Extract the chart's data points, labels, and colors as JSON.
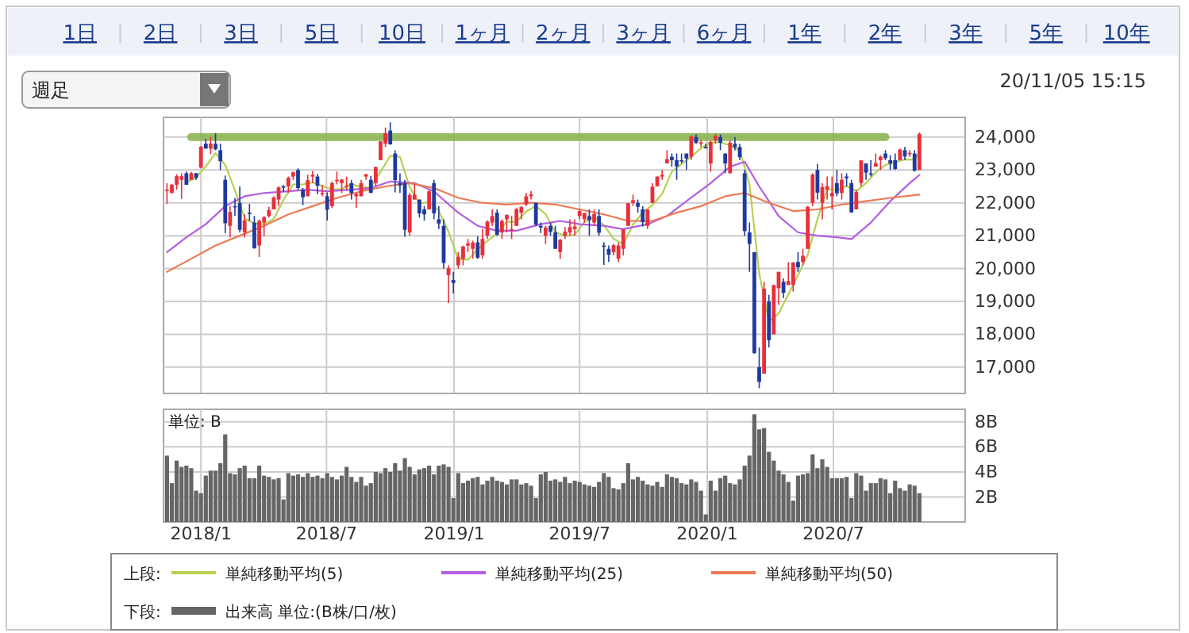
{
  "chart_data": [
    {
      "type": "candlestick",
      "annotations": [
        "1日",
        "2日",
        "3日",
        "5日",
        "10日",
        "1ヶ月",
        "2ヶ月",
        "3ヶ月",
        "6ヶ月",
        "1年",
        "2年",
        "3年",
        "5年",
        "10年",
        "週足",
        "20/11/05 15:15"
      ],
      "legend": "bottom",
      "legend_title": "上段:",
      "grid": true,
      "tick_labels": "y",
      "xlim": [
        "2017-11-08",
        "2021-01-07"
      ],
      "xticks": [
        {
          "value": "2018-01-01",
          "label": null
        },
        {
          "value": "2018-07-01",
          "label": null
        },
        {
          "value": "2019-01-01",
          "label": null
        },
        {
          "value": "2019-07-01",
          "label": null
        },
        {
          "value": "2020-01-01",
          "label": null
        },
        {
          "value": "2020-07-01",
          "label": null
        }
      ],
      "ylim": [
        16200,
        24600
      ],
      "yticks": [
        {
          "value": 17000,
          "label": "17,000"
        },
        {
          "value": 18000,
          "label": "18,000"
        },
        {
          "value": 19000,
          "label": "19,000"
        },
        {
          "value": 20000,
          "label": "20,000"
        },
        {
          "value": 21000,
          "label": "21,000"
        },
        {
          "value": 22000,
          "label": "22,000"
        },
        {
          "value": 23000,
          "label": "23,000"
        },
        {
          "value": 24000,
          "label": "24,000"
        }
      ],
      "x": [
        "2017-11-13",
        "2017-11-20",
        "2017-11-27",
        "2017-12-04",
        "2017-12-11",
        "2017-12-18",
        "2017-12-25",
        "2018-01-01",
        "2018-01-08",
        "2018-01-15",
        "2018-01-22",
        "2018-01-29",
        "2018-02-05",
        "2018-02-12",
        "2018-02-19",
        "2018-02-26",
        "2018-03-05",
        "2018-03-12",
        "2018-03-19",
        "2018-03-26",
        "2018-04-02",
        "2018-04-09",
        "2018-04-16",
        "2018-04-23",
        "2018-04-30",
        "2018-05-07",
        "2018-05-14",
        "2018-05-21",
        "2018-05-28",
        "2018-06-04",
        "2018-06-11",
        "2018-06-18",
        "2018-06-25",
        "2018-07-02",
        "2018-07-09",
        "2018-07-16",
        "2018-07-23",
        "2018-07-30",
        "2018-08-06",
        "2018-08-13",
        "2018-08-20",
        "2018-08-27",
        "2018-09-03",
        "2018-09-10",
        "2018-09-17",
        "2018-09-24",
        "2018-10-01",
        "2018-10-08",
        "2018-10-15",
        "2018-10-22",
        "2018-10-29",
        "2018-11-05",
        "2018-11-12",
        "2018-11-19",
        "2018-11-26",
        "2018-12-03",
        "2018-12-10",
        "2018-12-17",
        "2018-12-24",
        "2018-12-31",
        "2019-01-07",
        "2019-01-14",
        "2019-01-21",
        "2019-01-28",
        "2019-02-04",
        "2019-02-11",
        "2019-02-18",
        "2019-02-25",
        "2019-03-04",
        "2019-03-11",
        "2019-03-18",
        "2019-03-25",
        "2019-04-01",
        "2019-04-08",
        "2019-04-15",
        "2019-04-22",
        "2019-04-29",
        "2019-05-06",
        "2019-05-13",
        "2019-05-20",
        "2019-05-27",
        "2019-06-03",
        "2019-06-10",
        "2019-06-17",
        "2019-06-24",
        "2019-07-01",
        "2019-07-08",
        "2019-07-15",
        "2019-07-22",
        "2019-07-29",
        "2019-08-05",
        "2019-08-12",
        "2019-08-19",
        "2019-08-26",
        "2019-09-02",
        "2019-09-09",
        "2019-09-16",
        "2019-09-23",
        "2019-09-30",
        "2019-10-07",
        "2019-10-14",
        "2019-10-21",
        "2019-10-28",
        "2019-11-04",
        "2019-11-11",
        "2019-11-18",
        "2019-11-25",
        "2019-12-02",
        "2019-12-09",
        "2019-12-16",
        "2019-12-23",
        "2019-12-30",
        "2020-01-06",
        "2020-01-13",
        "2020-01-20",
        "2020-01-27",
        "2020-02-03",
        "2020-02-10",
        "2020-02-17",
        "2020-02-24",
        "2020-03-02",
        "2020-03-09",
        "2020-03-16",
        "2020-03-23",
        "2020-03-30",
        "2020-04-06",
        "2020-04-13",
        "2020-04-20",
        "2020-04-27",
        "2020-05-04",
        "2020-05-11",
        "2020-05-18",
        "2020-05-25",
        "2020-06-01",
        "2020-06-08",
        "2020-06-15",
        "2020-06-22",
        "2020-06-29",
        "2020-07-06",
        "2020-07-13",
        "2020-07-20",
        "2020-07-27",
        "2020-08-03",
        "2020-08-10",
        "2020-08-17",
        "2020-08-24",
        "2020-08-31",
        "2020-09-07",
        "2020-09-14",
        "2020-09-21",
        "2020-09-28",
        "2020-10-05",
        "2020-10-12",
        "2020-10-19",
        "2020-10-26",
        "2020-11-02"
      ],
      "ohlc": [
        [
          22400,
          22600,
          21970,
          22400
        ],
        [
          22300,
          22580,
          22290,
          22550
        ],
        [
          22550,
          22870,
          22400,
          22810
        ],
        [
          22700,
          22900,
          22120,
          22810
        ],
        [
          22900,
          22950,
          22550,
          22550
        ],
        [
          22700,
          22940,
          22700,
          22900
        ],
        [
          22900,
          22910,
          22700,
          22760
        ],
        [
          23070,
          23730,
          23050,
          23710
        ],
        [
          23800,
          23950,
          23650,
          23650
        ],
        [
          23650,
          24000,
          23480,
          23800
        ],
        [
          23800,
          24120,
          23600,
          23630
        ],
        [
          23600,
          23800,
          23000,
          23270
        ],
        [
          22700,
          22830,
          21080,
          21380
        ],
        [
          21300,
          21900,
          20950,
          21720
        ],
        [
          21900,
          22150,
          21600,
          21890
        ],
        [
          22000,
          22500,
          21100,
          21180
        ],
        [
          21100,
          21650,
          20940,
          21470
        ],
        [
          21700,
          21970,
          21450,
          21670
        ],
        [
          21400,
          21600,
          20600,
          20620
        ],
        [
          20700,
          21500,
          20350,
          21450
        ],
        [
          21400,
          21600,
          20990,
          21560
        ],
        [
          21600,
          21880,
          21550,
          21780
        ],
        [
          21800,
          22200,
          21800,
          22160
        ],
        [
          22100,
          22500,
          21900,
          22470
        ],
        [
          22500,
          22550,
          22330,
          22470
        ],
        [
          22500,
          22800,
          22300,
          22760
        ],
        [
          22800,
          22950,
          22700,
          22930
        ],
        [
          23000,
          23050,
          22400,
          22450
        ],
        [
          22400,
          22450,
          21930,
          22170
        ],
        [
          22200,
          22860,
          22200,
          22690
        ],
        [
          22800,
          22970,
          22600,
          22850
        ],
        [
          22800,
          22880,
          22260,
          22520
        ],
        [
          22300,
          22540,
          22200,
          22300
        ],
        [
          22200,
          22320,
          21460,
          21790
        ],
        [
          21900,
          22650,
          21850,
          22600
        ],
        [
          22700,
          22950,
          22560,
          22700
        ],
        [
          22600,
          22720,
          22300,
          22710
        ],
        [
          22500,
          22800,
          22400,
          22530
        ],
        [
          22600,
          22700,
          22100,
          22300
        ],
        [
          22200,
          22300,
          21850,
          22270
        ],
        [
          22200,
          22700,
          22200,
          22600
        ],
        [
          22800,
          22880,
          22700,
          22870
        ],
        [
          22700,
          22820,
          22300,
          22300
        ],
        [
          22600,
          23100,
          22500,
          23090
        ],
        [
          23300,
          23870,
          23300,
          23870
        ],
        [
          23800,
          24290,
          23700,
          24120
        ],
        [
          24200,
          24450,
          23770,
          23780
        ],
        [
          23500,
          23600,
          22320,
          22690
        ],
        [
          22600,
          22900,
          22300,
          22530
        ],
        [
          22600,
          22700,
          20970,
          21180
        ],
        [
          21100,
          22300,
          21000,
          22240
        ],
        [
          22100,
          22580,
          22100,
          22250
        ],
        [
          22100,
          22100,
          21550,
          21680
        ],
        [
          21800,
          21900,
          21460,
          21650
        ],
        [
          21800,
          22400,
          21800,
          22350
        ],
        [
          22600,
          22700,
          21500,
          21680
        ],
        [
          21500,
          21900,
          21200,
          21370
        ],
        [
          21300,
          21500,
          20000,
          20170
        ],
        [
          19800,
          20100,
          18950,
          20010
        ],
        [
          19650,
          19900,
          19240,
          19560
        ],
        [
          20100,
          20500,
          20000,
          20360
        ],
        [
          20300,
          20700,
          20100,
          20670
        ],
        [
          20700,
          20900,
          20500,
          20770
        ],
        [
          20600,
          20850,
          20300,
          20790
        ],
        [
          20800,
          20980,
          20300,
          20330
        ],
        [
          20400,
          21200,
          20300,
          20900
        ],
        [
          21000,
          21460,
          20900,
          21430
        ],
        [
          21400,
          21800,
          21300,
          21600
        ],
        [
          21700,
          21800,
          21000,
          21030
        ],
        [
          21100,
          21500,
          20900,
          21450
        ],
        [
          21500,
          21650,
          21100,
          21630
        ],
        [
          21200,
          21600,
          20900,
          21200
        ],
        [
          21300,
          21850,
          21300,
          21810
        ],
        [
          21700,
          21900,
          21500,
          21870
        ],
        [
          21950,
          22300,
          21900,
          22200
        ],
        [
          22200,
          22360,
          22100,
          22260
        ],
        [
          22000,
          22000,
          21300,
          21340
        ],
        [
          21300,
          21400,
          21080,
          21250
        ],
        [
          21000,
          21300,
          20750,
          21250
        ],
        [
          21300,
          21400,
          21000,
          21120
        ],
        [
          21100,
          21300,
          20600,
          20600
        ],
        [
          20500,
          20900,
          20290,
          20880
        ],
        [
          21000,
          21260,
          20900,
          21120
        ],
        [
          21100,
          21500,
          21000,
          21260
        ],
        [
          21200,
          21500,
          21000,
          21280
        ],
        [
          21600,
          21800,
          21500,
          21750
        ],
        [
          21500,
          21700,
          21400,
          21690
        ],
        [
          21600,
          21800,
          21000,
          21470
        ],
        [
          21400,
          21800,
          21300,
          21660
        ],
        [
          21600,
          21800,
          21000,
          21090
        ],
        [
          20700,
          20800,
          20110,
          20680
        ],
        [
          20600,
          20700,
          20200,
          20420
        ],
        [
          20500,
          20750,
          20400,
          20710
        ],
        [
          20300,
          20800,
          20200,
          20700
        ],
        [
          20600,
          21200,
          20400,
          21200
        ],
        [
          21300,
          22000,
          21300,
          21990
        ],
        [
          22000,
          22250,
          21900,
          22080
        ],
        [
          22000,
          22100,
          21700,
          21880
        ],
        [
          21800,
          21900,
          21280,
          21410
        ],
        [
          21300,
          21800,
          21200,
          21800
        ],
        [
          22000,
          22600,
          22000,
          22490
        ],
        [
          22500,
          22800,
          22500,
          22800
        ],
        [
          22800,
          23000,
          22700,
          22850
        ],
        [
          23200,
          23600,
          23200,
          23330
        ],
        [
          23400,
          23500,
          23100,
          23300
        ],
        [
          23300,
          23500,
          22700,
          23110
        ],
        [
          23300,
          23500,
          23200,
          23290
        ],
        [
          23500,
          23500,
          23000,
          23350
        ],
        [
          23400,
          24050,
          23300,
          24020
        ],
        [
          24000,
          24090,
          23800,
          23820
        ],
        [
          23800,
          23900,
          23700,
          23840
        ],
        [
          23700,
          23800,
          23650,
          23660
        ],
        [
          23200,
          23900,
          22950,
          23850
        ],
        [
          23900,
          24100,
          23800,
          24040
        ],
        [
          24000,
          24080,
          23600,
          23830
        ],
        [
          23500,
          23500,
          22900,
          23200
        ],
        [
          22900,
          23900,
          22900,
          23830
        ],
        [
          23800,
          24000,
          23600,
          23690
        ],
        [
          23700,
          23800,
          23300,
          23390
        ],
        [
          22900,
          23000,
          21000,
          21140
        ],
        [
          21100,
          21400,
          19900,
          20750
        ],
        [
          20500,
          20500,
          17400,
          17430
        ],
        [
          17000,
          17600,
          16360,
          16550
        ],
        [
          16800,
          19600,
          16800,
          19390
        ],
        [
          19000,
          19200,
          17600,
          17820
        ],
        [
          18000,
          19500,
          18000,
          19500
        ],
        [
          19400,
          19900,
          18900,
          19900
        ],
        [
          19600,
          19700,
          19100,
          19260
        ],
        [
          19500,
          20200,
          19500,
          19620
        ],
        [
          19500,
          20200,
          19300,
          20180
        ],
        [
          20200,
          20500,
          19900,
          20040
        ],
        [
          20200,
          20600,
          20100,
          20390
        ],
        [
          20600,
          21900,
          20600,
          21880
        ],
        [
          22000,
          22900,
          21900,
          22860
        ],
        [
          23000,
          23180,
          22100,
          22310
        ],
        [
          22000,
          22600,
          21500,
          22480
        ],
        [
          22400,
          22800,
          22100,
          22510
        ],
        [
          22200,
          22800,
          21800,
          22300
        ],
        [
          22600,
          23000,
          22200,
          22290
        ],
        [
          22300,
          22900,
          22100,
          22700
        ],
        [
          22800,
          22900,
          22500,
          22750
        ],
        [
          22600,
          22700,
          21700,
          21710
        ],
        [
          21800,
          22400,
          21800,
          22330
        ],
        [
          22600,
          23300,
          22500,
          23290
        ],
        [
          23200,
          23200,
          22700,
          22920
        ],
        [
          22900,
          23300,
          22800,
          22880
        ],
        [
          23100,
          23500,
          23100,
          23210
        ],
        [
          23300,
          23450,
          23000,
          23400
        ],
        [
          23500,
          23600,
          23300,
          23360
        ],
        [
          23300,
          23450,
          23000,
          23200
        ],
        [
          23300,
          23500,
          23000,
          23030
        ],
        [
          23300,
          23650,
          23300,
          23620
        ],
        [
          23600,
          23700,
          23300,
          23410
        ],
        [
          23500,
          23600,
          23400,
          23520
        ],
        [
          23500,
          23600,
          22950,
          22980
        ],
        [
          23000,
          24140,
          23000,
          24100
        ]
      ],
      "series": [
        {
          "type": "line",
          "name": "単純移動平均(5)",
          "color": "#b5d152",
          "x": [
            "2017-12-11",
            "2017-12-25",
            "2018-01-08",
            "2018-01-22",
            "2018-02-05",
            "2018-02-19",
            "2018-03-05",
            "2018-03-19",
            "2018-04-02",
            "2018-04-16",
            "2018-04-30",
            "2018-05-14",
            "2018-05-28",
            "2018-06-11",
            "2018-06-25",
            "2018-07-09",
            "2018-07-23",
            "2018-08-06",
            "2018-08-20",
            "2018-09-03",
            "2018-09-17",
            "2018-10-01",
            "2018-10-15",
            "2018-10-29",
            "2018-11-12",
            "2018-11-26",
            "2018-12-10",
            "2018-12-24",
            "2019-01-07",
            "2019-01-21",
            "2019-02-04",
            "2019-02-18",
            "2019-03-04",
            "2019-03-18",
            "2019-04-01",
            "2019-04-15",
            "2019-04-29",
            "2019-05-13",
            "2019-05-27",
            "2019-06-10",
            "2019-06-24",
            "2019-07-08",
            "2019-07-22",
            "2019-08-05",
            "2019-08-19",
            "2019-09-02",
            "2019-09-16",
            "2019-09-30",
            "2019-10-14",
            "2019-10-28",
            "2019-11-11",
            "2019-11-25",
            "2019-12-09",
            "2019-12-23",
            "2020-01-06",
            "2020-01-20",
            "2020-02-03",
            "2020-02-17",
            "2020-03-02",
            "2020-03-16",
            "2020-03-30",
            "2020-04-13",
            "2020-04-27",
            "2020-05-11",
            "2020-05-25",
            "2020-06-08",
            "2020-06-22",
            "2020-07-06",
            "2020-07-20",
            "2020-08-03",
            "2020-08-17",
            "2020-08-31",
            "2020-09-14",
            "2020-09-28",
            "2020-10-12",
            "2020-10-26",
            "2020-11-02"
          ],
          "values": [
            22620,
            22770,
            23110,
            23510,
            23150,
            22380,
            21530,
            21370,
            21350,
            21510,
            22090,
            22560,
            22560,
            22620,
            22510,
            22410,
            22420,
            22570,
            22480,
            22470,
            22950,
            23430,
            23400,
            22480,
            21980,
            22030,
            21750,
            21120,
            20290,
            20270,
            20580,
            20840,
            21060,
            21430,
            21420,
            21740,
            21900,
            21660,
            21110,
            20990,
            21030,
            21420,
            21570,
            21320,
            20910,
            20740,
            21340,
            21710,
            21930,
            22270,
            22950,
            23180,
            23410,
            23660,
            23840,
            23840,
            23750,
            23590,
            22560,
            19850,
            18390,
            18630,
            19220,
            19800,
            20420,
            21500,
            22410,
            22380,
            22510,
            22360,
            22600,
            22930,
            23150,
            23240,
            23320,
            23310,
            23530
          ]
        },
        {
          "type": "line",
          "name": "単純移動平均(25)",
          "color": "#b45ee0",
          "x": [
            "2017-11-13",
            "2017-12-11",
            "2018-01-08",
            "2018-02-05",
            "2018-03-05",
            "2018-04-02",
            "2018-05-07",
            "2018-06-04",
            "2018-07-02",
            "2018-08-06",
            "2018-09-03",
            "2018-10-01",
            "2018-11-05",
            "2018-12-03",
            "2019-01-07",
            "2019-02-04",
            "2019-03-04",
            "2019-04-01",
            "2019-05-06",
            "2019-06-03",
            "2019-07-01",
            "2019-08-05",
            "2019-09-02",
            "2019-10-07",
            "2019-11-04",
            "2019-12-02",
            "2020-01-06",
            "2020-02-03",
            "2020-02-24",
            "2020-03-16",
            "2020-04-13",
            "2020-05-11",
            "2020-06-08",
            "2020-07-06",
            "2020-07-27",
            "2020-08-24",
            "2020-09-21",
            "2020-10-19",
            "2020-11-02"
          ],
          "values": [
            20500,
            20950,
            21350,
            21900,
            22200,
            22300,
            22350,
            22400,
            22350,
            22400,
            22450,
            22650,
            22600,
            22350,
            21700,
            21300,
            21150,
            21150,
            21350,
            21450,
            21350,
            21300,
            21200,
            21350,
            21600,
            22050,
            22600,
            23100,
            23250,
            22500,
            21600,
            21100,
            21000,
            20950,
            20900,
            21400,
            22050,
            22600,
            22850
          ]
        },
        {
          "type": "line",
          "name": "単純移動平均(50)",
          "color": "#ec7a55",
          "x": [
            "2017-11-13",
            "2017-12-18",
            "2018-01-22",
            "2018-02-26",
            "2018-04-02",
            "2018-05-07",
            "2018-06-11",
            "2018-07-16",
            "2018-08-20",
            "2018-09-24",
            "2018-10-29",
            "2018-12-03",
            "2019-01-07",
            "2019-02-11",
            "2019-03-18",
            "2019-04-22",
            "2019-05-27",
            "2019-07-01",
            "2019-08-05",
            "2019-09-09",
            "2019-10-14",
            "2019-11-18",
            "2019-12-23",
            "2020-01-27",
            "2020-02-24",
            "2020-03-30",
            "2020-05-04",
            "2020-06-08",
            "2020-07-13",
            "2020-08-17",
            "2020-09-21",
            "2020-11-02"
          ],
          "values": [
            19900,
            20300,
            20700,
            21000,
            21300,
            21650,
            21900,
            22150,
            22350,
            22500,
            22600,
            22450,
            22150,
            22000,
            21950,
            22000,
            21950,
            21800,
            21650,
            21450,
            21450,
            21700,
            21900,
            22200,
            22300,
            22000,
            21750,
            21800,
            21950,
            22050,
            22150,
            22250
          ]
        },
        {
          "type": "line",
          "color": "#8db552",
          "x": [
            "2017-12-18",
            "2020-09-14"
          ],
          "values": [
            24000,
            24000
          ]
        }
      ]
    },
    {
      "type": "bar",
      "annotations": [
        "単位: B"
      ],
      "legend": "bottom",
      "legend_title": "下段:",
      "grid": true,
      "xlim": [
        "2017-11-08",
        "2021-01-07"
      ],
      "xticks": [
        {
          "value": "2018-01-01",
          "label": "2018/1"
        },
        {
          "value": "2018-07-01",
          "label": "2018/7"
        },
        {
          "value": "2019-01-01",
          "label": "2019/1"
        },
        {
          "value": "2019-07-01",
          "label": "2019/7"
        },
        {
          "value": "2020-01-01",
          "label": "2020/1"
        },
        {
          "value": "2020-07-01",
          "label": "2020/7"
        }
      ],
      "ylim": [
        0,
        9
      ],
      "yticks": [
        {
          "value": 2,
          "label": "2B"
        },
        {
          "value": 4,
          "label": "4B"
        },
        {
          "value": 6,
          "label": "6B"
        },
        {
          "value": 8,
          "label": "8B"
        }
      ],
      "x": [
        "2017-11-13",
        "2017-11-20",
        "2017-11-27",
        "2017-12-04",
        "2017-12-11",
        "2017-12-18",
        "2017-12-25",
        "2018-01-01",
        "2018-01-08",
        "2018-01-15",
        "2018-01-22",
        "2018-01-29",
        "2018-02-05",
        "2018-02-12",
        "2018-02-19",
        "2018-02-26",
        "2018-03-05",
        "2018-03-12",
        "2018-03-19",
        "2018-03-26",
        "2018-04-02",
        "2018-04-09",
        "2018-04-16",
        "2018-04-23",
        "2018-04-30",
        "2018-05-07",
        "2018-05-14",
        "2018-05-21",
        "2018-05-28",
        "2018-06-04",
        "2018-06-11",
        "2018-06-18",
        "2018-06-25",
        "2018-07-02",
        "2018-07-09",
        "2018-07-16",
        "2018-07-23",
        "2018-07-30",
        "2018-08-06",
        "2018-08-13",
        "2018-08-20",
        "2018-08-27",
        "2018-09-03",
        "2018-09-10",
        "2018-09-17",
        "2018-09-24",
        "2018-10-01",
        "2018-10-08",
        "2018-10-15",
        "2018-10-22",
        "2018-10-29",
        "2018-11-05",
        "2018-11-12",
        "2018-11-19",
        "2018-11-26",
        "2018-12-03",
        "2018-12-10",
        "2018-12-17",
        "2018-12-24",
        "2018-12-31",
        "2019-01-07",
        "2019-01-14",
        "2019-01-21",
        "2019-01-28",
        "2019-02-04",
        "2019-02-11",
        "2019-02-18",
        "2019-02-25",
        "2019-03-04",
        "2019-03-11",
        "2019-03-18",
        "2019-03-25",
        "2019-04-01",
        "2019-04-08",
        "2019-04-15",
        "2019-04-22",
        "2019-04-29",
        "2019-05-06",
        "2019-05-13",
        "2019-05-20",
        "2019-05-27",
        "2019-06-03",
        "2019-06-10",
        "2019-06-17",
        "2019-06-24",
        "2019-07-01",
        "2019-07-08",
        "2019-07-15",
        "2019-07-22",
        "2019-07-29",
        "2019-08-05",
        "2019-08-12",
        "2019-08-19",
        "2019-08-26",
        "2019-09-02",
        "2019-09-09",
        "2019-09-16",
        "2019-09-23",
        "2019-09-30",
        "2019-10-07",
        "2019-10-14",
        "2019-10-21",
        "2019-10-28",
        "2019-11-04",
        "2019-11-11",
        "2019-11-18",
        "2019-11-25",
        "2019-12-02",
        "2019-12-09",
        "2019-12-16",
        "2019-12-23",
        "2019-12-30",
        "2020-01-06",
        "2020-01-13",
        "2020-01-20",
        "2020-01-27",
        "2020-02-03",
        "2020-02-10",
        "2020-02-17",
        "2020-02-24",
        "2020-03-02",
        "2020-03-09",
        "2020-03-16",
        "2020-03-23",
        "2020-03-30",
        "2020-04-06",
        "2020-04-13",
        "2020-04-20",
        "2020-04-27",
        "2020-05-04",
        "2020-05-11",
        "2020-05-18",
        "2020-05-25",
        "2020-06-01",
        "2020-06-08",
        "2020-06-15",
        "2020-06-22",
        "2020-06-29",
        "2020-07-06",
        "2020-07-13",
        "2020-07-20",
        "2020-07-27",
        "2020-08-03",
        "2020-08-10",
        "2020-08-17",
        "2020-08-24",
        "2020-08-31",
        "2020-09-07",
        "2020-09-14",
        "2020-09-21",
        "2020-09-28",
        "2020-10-05",
        "2020-10-12",
        "2020-10-19",
        "2020-10-26",
        "2020-11-02"
      ],
      "series": [
        {
          "name": "出来高 単位:(B株/口/枚)",
          "color": "#666666",
          "values": [
            5.3,
            3.1,
            4.9,
            4.4,
            4.5,
            4.3,
            2.5,
            2.3,
            3.7,
            4.1,
            4.1,
            4.7,
            7.0,
            3.9,
            3.8,
            4.3,
            4.5,
            3.5,
            3.5,
            4.5,
            3.7,
            3.6,
            3.4,
            3.5,
            1.8,
            3.9,
            3.7,
            3.8,
            3.6,
            3.9,
            3.6,
            3.7,
            3.5,
            3.9,
            3.6,
            3.4,
            3.7,
            4.4,
            3.6,
            3.2,
            3.6,
            2.9,
            3.1,
            4.0,
            3.9,
            4.3,
            4.0,
            4.7,
            4.1,
            5.1,
            4.4,
            3.8,
            4.2,
            4.3,
            4.5,
            3.8,
            4.5,
            4.6,
            4.4,
            1.9,
            3.9,
            3.1,
            3.3,
            3.5,
            3.6,
            3.0,
            3.3,
            3.6,
            3.3,
            3.2,
            3.0,
            3.4,
            3.4,
            3.0,
            3.1,
            2.9,
            1.9,
            3.8,
            4.0,
            3.3,
            3.4,
            3.2,
            3.6,
            3.1,
            3.3,
            3.2,
            3.0,
            2.9,
            2.8,
            3.2,
            3.9,
            3.6,
            2.7,
            2.6,
            3.1,
            4.7,
            3.4,
            3.6,
            3.3,
            3.0,
            2.9,
            3.2,
            2.8,
            3.8,
            3.6,
            3.5,
            3.1,
            3.0,
            3.4,
            3.2,
            2.5,
            0.6,
            3.3,
            2.5,
            3.5,
            3.7,
            3.1,
            3.0,
            3.4,
            4.5,
            5.3,
            8.6,
            7.4,
            7.5,
            5.6,
            4.9,
            4.1,
            3.8,
            3.2,
            1.7,
            3.7,
            3.8,
            3.9,
            5.4,
            4.3,
            5.0,
            4.4,
            3.5,
            3.5,
            3.5,
            3.6,
            1.9,
            3.9,
            3.7,
            2.5,
            3.1,
            3.1,
            3.5,
            3.4,
            2.3,
            3.3,
            2.7,
            2.5,
            3.0,
            2.9,
            2.3
          ]
        }
      ]
    }
  ]
}
